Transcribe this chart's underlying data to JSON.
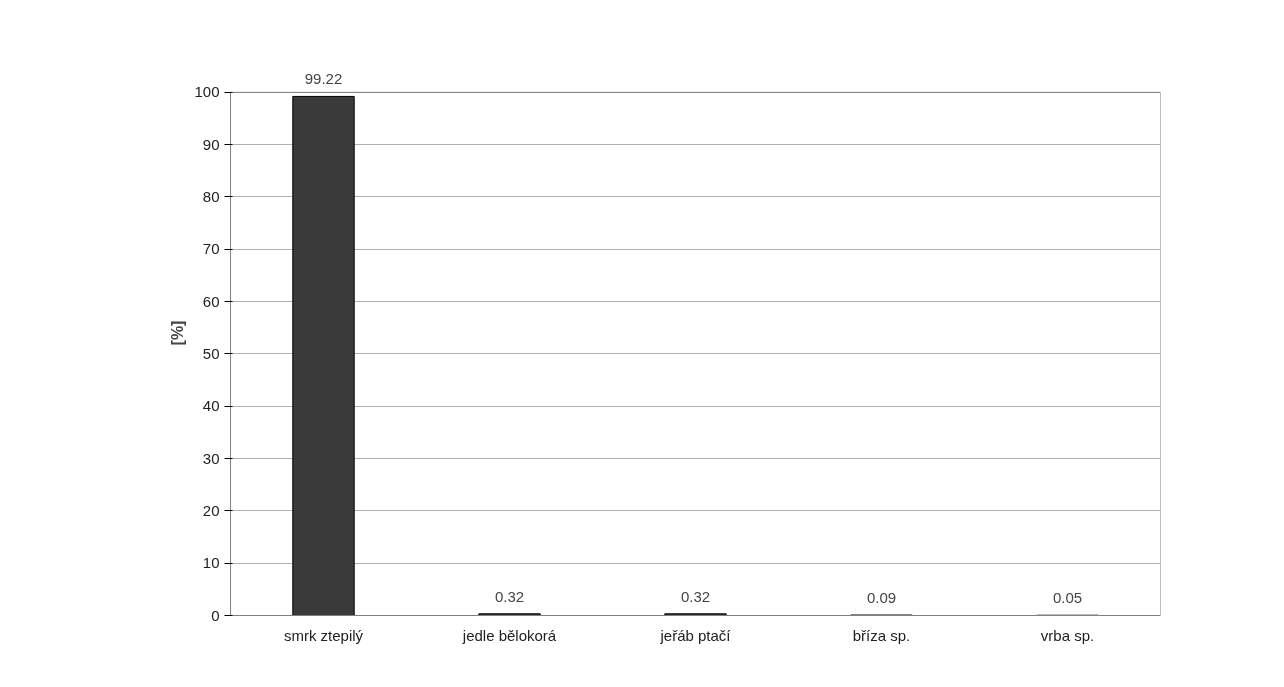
{
  "chart_data": {
    "type": "bar",
    "ylabel": "[%]",
    "categories": [
      "smrk ztepilý",
      "jedle bělokorá",
      "jeřáb ptačí",
      "bříza sp.",
      "vrba sp."
    ],
    "values": [
      99.22,
      0.32,
      0.32,
      0.09,
      0.05
    ],
    "color": "#3a3a3a",
    "ylim": [
      0,
      100
    ],
    "yticks": [
      0,
      10,
      20,
      30,
      40,
      50,
      60,
      70,
      80,
      90,
      100
    ],
    "grid": "y",
    "data_labels": true
  }
}
